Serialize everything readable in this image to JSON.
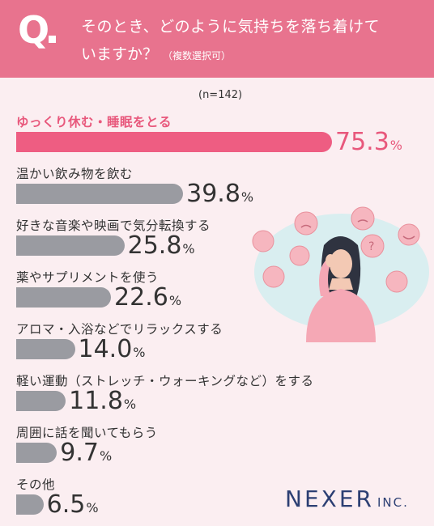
{
  "header": {
    "q": "Q",
    "line1": "そのとき、どのように気持ちを落ち着けて",
    "line2": "いますか？",
    "note": "（複数選択可）"
  },
  "n_label": "(n=142)",
  "chart_data": {
    "type": "bar",
    "orientation": "horizontal",
    "categories": [
      "ゆっくり休む・睡眠をとる",
      "温かい飲み物を飲む",
      "好きな音楽や映画で気分転換する",
      "薬やサプリメントを使う",
      "アロマ・入浴などでリラックスする",
      "軽い運動（ストレッチ・ウォーキングなど）をする",
      "周囲に話を聞いてもらう",
      "その他"
    ],
    "values": [
      75.3,
      39.8,
      25.8,
      22.6,
      14.0,
      11.8,
      9.7,
      6.5
    ],
    "value_labels": [
      "75.3",
      "39.8",
      "25.8",
      "22.6",
      "14.0",
      "11.8",
      "9.7",
      "6.5"
    ],
    "unit": "%",
    "highlight_index": 0,
    "colors": {
      "highlight": "#ee5d82",
      "default": "#9a9ba1"
    }
  },
  "logo": {
    "name": "NEXER",
    "suffix": "INC."
  },
  "colors": {
    "header": "#e8738e",
    "background": "#fbeef1",
    "logo": "#2c3f73"
  }
}
